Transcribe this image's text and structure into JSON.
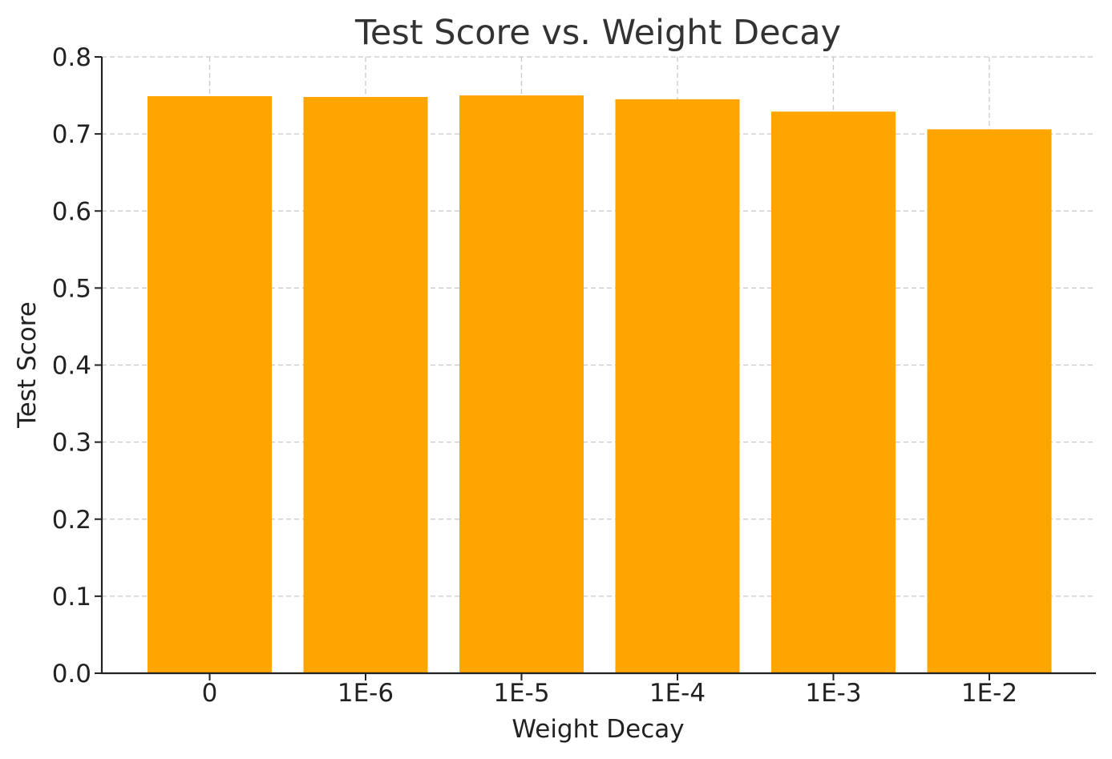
{
  "chart_data": {
    "type": "bar",
    "title": "Test Score vs. Weight Decay",
    "xlabel": "Weight Decay",
    "ylabel": "Test Score",
    "categories": [
      "0",
      "1E-6",
      "1E-5",
      "1E-4",
      "1E-3",
      "1E-2"
    ],
    "values": [
      0.749,
      0.748,
      0.75,
      0.745,
      0.729,
      0.706
    ],
    "ylim": [
      0.0,
      0.8
    ],
    "yticks": [
      "0.0",
      "0.1",
      "0.2",
      "0.3",
      "0.4",
      "0.5",
      "0.6",
      "0.7",
      "0.8"
    ],
    "grid": true,
    "bar_color": "#FFA500"
  }
}
